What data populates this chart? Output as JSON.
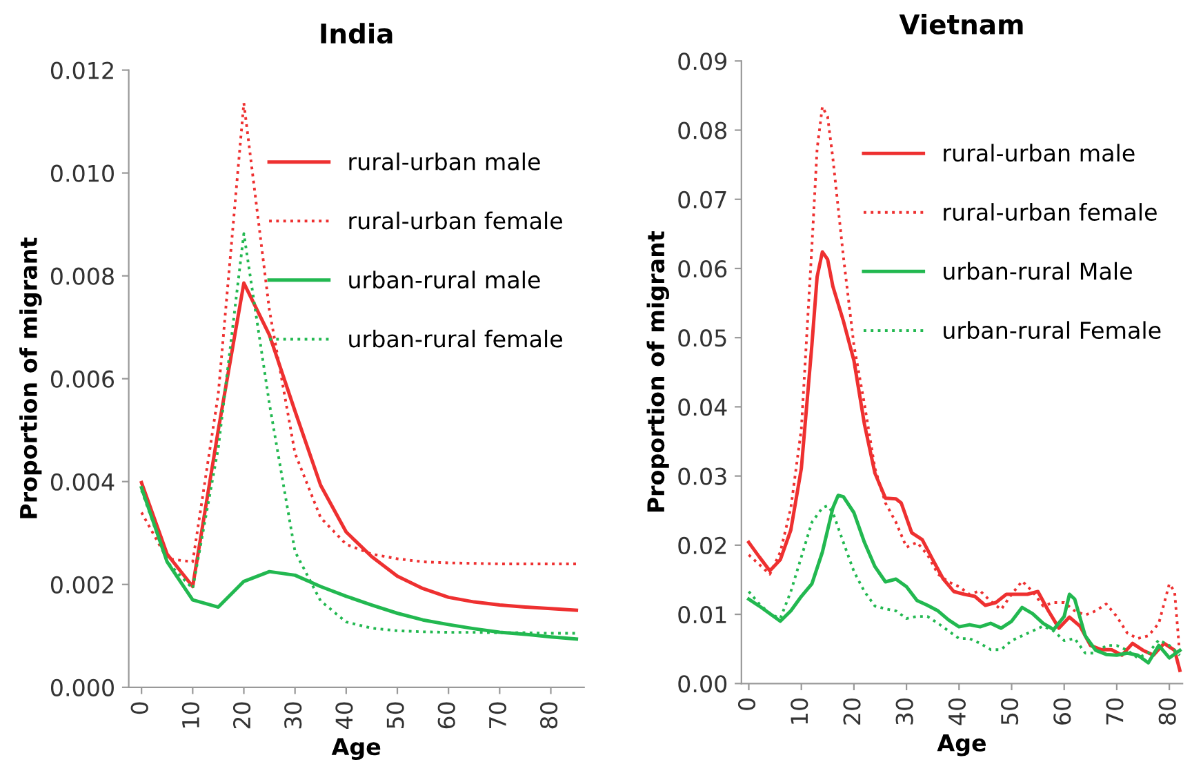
{
  "chart_data": [
    {
      "type": "line",
      "title": "India",
      "xlabel": "Age",
      "ylabel": "Proportion of migrant",
      "x": [
        0,
        5,
        10,
        15,
        20,
        25,
        30,
        35,
        40,
        45,
        50,
        55,
        60,
        65,
        70,
        75,
        80,
        85
      ],
      "xlim": [
        -2.5,
        86.5
      ],
      "xticks": [
        0,
        10,
        20,
        30,
        40,
        50,
        60,
        70,
        80
      ],
      "ylim": [
        0,
        0.012
      ],
      "yticks": [
        {
          "value": 0,
          "label": "0.000"
        },
        {
          "value": 0.002,
          "label": "0.002"
        },
        {
          "value": 0.004,
          "label": "0.004"
        },
        {
          "value": 0.006,
          "label": "0.006"
        },
        {
          "value": 0.008,
          "label": "0.008"
        },
        {
          "value": 0.01,
          "label": "0.010"
        },
        {
          "value": 0.012,
          "label": "0.012"
        }
      ],
      "legend": "upper right",
      "grid": false,
      "marker": "none",
      "series": [
        {
          "name": "rural-urban male",
          "color": "#ee3030",
          "line_style": "solid",
          "values": [
            0.00398,
            0.00259,
            0.00196,
            0.005,
            0.00786,
            0.00685,
            0.00537,
            0.00393,
            0.00302,
            0.00254,
            0.00216,
            0.00192,
            0.00175,
            0.00166,
            0.0016,
            0.00156,
            0.00153,
            0.0015
          ]
        },
        {
          "name": "rural-urban female",
          "color": "#ee3030",
          "line_style": "dotted",
          "values": [
            0.0034,
            0.0025,
            0.00244,
            0.0057,
            0.01136,
            0.00733,
            0.00455,
            0.0033,
            0.00278,
            0.00259,
            0.0025,
            0.00244,
            0.00242,
            0.00241,
            0.0024,
            0.0024,
            0.0024,
            0.0024
          ]
        },
        {
          "name": "urban-rural male",
          "color": "#22b850",
          "line_style": "solid",
          "values": [
            0.00388,
            0.00244,
            0.0017,
            0.00156,
            0.00206,
            0.00225,
            0.00218,
            0.00196,
            0.00177,
            0.0016,
            0.00144,
            0.00131,
            0.00122,
            0.00114,
            0.00107,
            0.00103,
            0.00098,
            0.00094
          ]
        },
        {
          "name": "urban-rural female",
          "color": "#22b850",
          "line_style": "dotted",
          "values": [
            0.00383,
            0.00244,
            0.00192,
            0.00465,
            0.00882,
            0.00551,
            0.00264,
            0.00168,
            0.00127,
            0.00115,
            0.0011,
            0.00108,
            0.00107,
            0.00107,
            0.00106,
            0.00106,
            0.00105,
            0.00105
          ]
        }
      ]
    },
    {
      "type": "line",
      "title": "Vietnam",
      "xlabel": "Age",
      "ylabel": "Proportion of migrant",
      "xlim": [
        -1.4,
        82.5
      ],
      "xticks": [
        0,
        10,
        20,
        30,
        40,
        50,
        60,
        70,
        80
      ],
      "ylim": [
        0,
        0.09
      ],
      "yticks": [
        {
          "value": 0,
          "label": "0.00"
        },
        {
          "value": 0.01,
          "label": "0.01"
        },
        {
          "value": 0.02,
          "label": "0.02"
        },
        {
          "value": 0.03,
          "label": "0.03"
        },
        {
          "value": 0.04,
          "label": "0.04"
        },
        {
          "value": 0.05,
          "label": "0.05"
        },
        {
          "value": 0.06,
          "label": "0.06"
        },
        {
          "value": 0.07,
          "label": "0.07"
        },
        {
          "value": 0.08,
          "label": "0.08"
        },
        {
          "value": 0.09,
          "label": "0.09"
        }
      ],
      "legend": "upper right",
      "grid": false,
      "marker": "none",
      "series": [
        {
          "name": "rural-urban male",
          "color": "#ee3030",
          "line_style": "solid",
          "x": [
            0,
            2,
            4,
            6,
            8,
            10,
            12,
            13,
            14,
            15,
            16,
            18,
            20,
            22,
            24,
            26,
            28,
            29,
            31,
            33,
            35,
            37,
            39,
            41,
            43,
            45,
            47,
            49,
            51,
            53,
            55,
            57,
            59,
            61,
            63,
            65,
            67,
            69,
            71,
            73,
            75,
            77,
            79,
            81,
            82
          ],
          "values": [
            0.0204,
            0.0183,
            0.0163,
            0.0179,
            0.0222,
            0.0311,
            0.0489,
            0.0588,
            0.0624,
            0.0613,
            0.0574,
            0.0524,
            0.0467,
            0.0375,
            0.0304,
            0.0268,
            0.0267,
            0.0261,
            0.0218,
            0.0208,
            0.0179,
            0.0151,
            0.0133,
            0.0129,
            0.0126,
            0.0113,
            0.0117,
            0.0129,
            0.0129,
            0.0129,
            0.0133,
            0.0105,
            0.008,
            0.0096,
            0.0083,
            0.0055,
            0.0049,
            0.0049,
            0.0041,
            0.0058,
            0.0048,
            0.0041,
            0.0058,
            0.0048,
            0.0019
          ]
        },
        {
          "name": "rural-urban female",
          "color": "#ee3030",
          "line_style": "dotted",
          "x": [
            0,
            2,
            4,
            6,
            8,
            10,
            12,
            13,
            14,
            15,
            16,
            18,
            20,
            22,
            24,
            26,
            28,
            30,
            32,
            34,
            36,
            38,
            40,
            42,
            44,
            46,
            48,
            50,
            52,
            54,
            56,
            58,
            60,
            62,
            64,
            66,
            68,
            70,
            72,
            74,
            76,
            78,
            80,
            81,
            82
          ],
          "values": [
            0.0186,
            0.0172,
            0.0158,
            0.019,
            0.0254,
            0.0368,
            0.0631,
            0.0773,
            0.0834,
            0.0819,
            0.0759,
            0.0617,
            0.0489,
            0.0404,
            0.0311,
            0.0261,
            0.0233,
            0.0197,
            0.0204,
            0.0186,
            0.0158,
            0.0147,
            0.014,
            0.0129,
            0.0134,
            0.0119,
            0.0107,
            0.0129,
            0.0148,
            0.0133,
            0.0112,
            0.0117,
            0.0117,
            0.0105,
            0.0099,
            0.0105,
            0.0115,
            0.0097,
            0.0073,
            0.0065,
            0.0069,
            0.0087,
            0.0144,
            0.0133,
            0.0041
          ]
        },
        {
          "name": "urban-rural Male",
          "color": "#22b850",
          "line_style": "solid",
          "x": [
            0,
            2,
            4,
            6,
            8,
            10,
            12,
            14,
            16,
            17,
            18,
            20,
            22,
            24,
            26,
            28,
            30,
            32,
            34,
            36,
            38,
            40,
            42,
            44,
            46,
            48,
            50,
            52,
            54,
            56,
            58,
            60,
            61,
            62,
            64,
            66,
            68,
            70,
            72,
            74,
            76,
            78,
            80,
            82
          ],
          "values": [
            0.0122,
            0.0112,
            0.0101,
            0.009,
            0.0105,
            0.0126,
            0.0144,
            0.019,
            0.0254,
            0.0272,
            0.027,
            0.0247,
            0.0204,
            0.0169,
            0.0147,
            0.0151,
            0.014,
            0.012,
            0.0113,
            0.0105,
            0.0092,
            0.0082,
            0.0085,
            0.0082,
            0.0087,
            0.008,
            0.009,
            0.011,
            0.0101,
            0.0087,
            0.0078,
            0.0097,
            0.0129,
            0.0122,
            0.0069,
            0.0048,
            0.0042,
            0.0041,
            0.0044,
            0.0041,
            0.003,
            0.0055,
            0.0037,
            0.0048
          ]
        },
        {
          "name": "urban-rural Female",
          "color": "#22b850",
          "line_style": "dotted",
          "x": [
            0,
            2,
            4,
            6,
            8,
            10,
            12,
            14,
            15,
            16,
            18,
            20,
            22,
            24,
            26,
            28,
            30,
            32,
            34,
            36,
            38,
            40,
            42,
            44,
            46,
            48,
            50,
            52,
            54,
            56,
            58,
            60,
            62,
            64,
            66,
            68,
            70,
            72,
            74,
            76,
            78,
            80,
            82
          ],
          "values": [
            0.0133,
            0.0115,
            0.0101,
            0.0094,
            0.0133,
            0.0183,
            0.0233,
            0.0254,
            0.0257,
            0.0247,
            0.0204,
            0.0162,
            0.0133,
            0.0112,
            0.0108,
            0.0105,
            0.0094,
            0.0097,
            0.0097,
            0.0087,
            0.0076,
            0.0065,
            0.0065,
            0.0058,
            0.0049,
            0.0049,
            0.0062,
            0.0069,
            0.0076,
            0.0083,
            0.0076,
            0.0062,
            0.0065,
            0.0044,
            0.0044,
            0.0055,
            0.0055,
            0.0048,
            0.0037,
            0.0044,
            0.0063,
            0.0055,
            0.0041
          ]
        }
      ]
    }
  ]
}
